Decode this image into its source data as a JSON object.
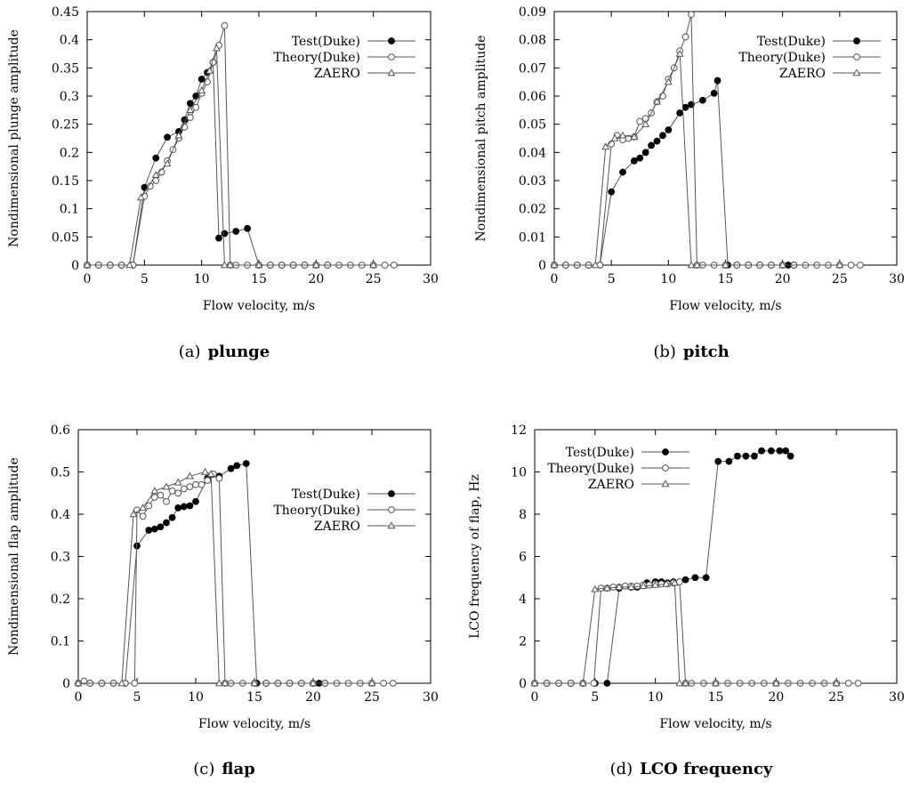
{
  "chart_data": [
    {
      "type": "line",
      "caption_prefix": "(a)",
      "caption_bold": "plunge",
      "xlabel": "Flow velocity, m/s",
      "ylabel": "Nondimensional plunge  amplitude",
      "xlim": [
        0,
        30
      ],
      "ylim": [
        0,
        0.45
      ],
      "xticks": [
        "0",
        "5",
        "10",
        "15",
        "20",
        "25",
        "30"
      ],
      "yticks": [
        "0",
        "0.05",
        "0.1",
        "0.15",
        "0.2",
        "0.25",
        "0.3",
        "0.35",
        "0.4",
        "0.45"
      ],
      "legend_position": "top-right",
      "series": [
        {
          "name": "Test(Duke)",
          "marker": "filled-circle",
          "x": [
            0,
            1,
            2,
            3,
            4,
            5,
            6,
            7,
            8,
            8.5,
            9,
            9.5,
            10,
            10.5,
            11,
            11.5,
            12,
            13,
            14,
            15,
            16,
            17,
            18,
            19,
            20,
            21
          ],
          "y": [
            0,
            0,
            0,
            0,
            0,
            0.138,
            0.19,
            0.227,
            0.237,
            0.258,
            0.287,
            0.3,
            0.33,
            0.342,
            0.36,
            0.048,
            0.056,
            0.06,
            0.065,
            0,
            0,
            0,
            0,
            0,
            0,
            0
          ]
        },
        {
          "name": "Theory(Duke)",
          "marker": "open-circle",
          "x": [
            0,
            1,
            2,
            3,
            4,
            5,
            5.5,
            6,
            6.5,
            7,
            7.5,
            8,
            8.5,
            9,
            9.5,
            10,
            10.5,
            11,
            11.5,
            12,
            12.5,
            13,
            14,
            15,
            16,
            17,
            18,
            19,
            20,
            21,
            22,
            23,
            24,
            25,
            26,
            26.8
          ],
          "y": [
            0,
            0,
            0,
            0,
            0,
            0.122,
            0.14,
            0.15,
            0.165,
            0.185,
            0.205,
            0.225,
            0.245,
            0.262,
            0.28,
            0.305,
            0.325,
            0.36,
            0.39,
            0.425,
            0,
            0,
            0,
            0,
            0,
            0,
            0,
            0,
            0,
            0,
            0,
            0,
            0,
            0,
            0,
            0
          ]
        },
        {
          "name": "ZAERO",
          "marker": "open-triangle",
          "x": [
            0,
            3.7,
            4.7,
            6,
            7,
            8,
            9,
            10,
            10.7,
            11.3,
            12,
            12.5,
            15,
            20,
            25
          ],
          "y": [
            0,
            0,
            0.12,
            0.16,
            0.18,
            0.23,
            0.275,
            0.31,
            0.345,
            0.385,
            0,
            0,
            0,
            0,
            0
          ]
        }
      ]
    },
    {
      "type": "line",
      "caption_prefix": "(b)",
      "caption_bold": "pitch",
      "xlabel": "Flow velocity, m/s",
      "ylabel": "Nondimensional pitch  amplitude",
      "xlim": [
        0,
        30
      ],
      "ylim": [
        0,
        0.09
      ],
      "xticks": [
        "0",
        "5",
        "10",
        "15",
        "20",
        "25",
        "30"
      ],
      "yticks": [
        "0",
        "0.01",
        "0.02",
        "0.03",
        "0.04",
        "0.05",
        "0.06",
        "0.07",
        "0.08",
        "0.09"
      ],
      "legend_position": "top-right",
      "series": [
        {
          "name": "Test(Duke)",
          "marker": "filled-circle",
          "x": [
            0,
            1,
            2,
            3,
            4,
            5,
            6,
            7,
            7.5,
            8,
            8.5,
            9,
            9.5,
            10,
            11,
            11.5,
            12,
            13,
            14,
            14.3,
            15.2,
            16,
            17,
            18,
            19,
            20,
            20.5,
            21
          ],
          "y": [
            0,
            0,
            0,
            0,
            0,
            0.026,
            0.033,
            0.037,
            0.038,
            0.04,
            0.0425,
            0.044,
            0.046,
            0.048,
            0.054,
            0.056,
            0.057,
            0.0585,
            0.061,
            0.0655,
            0,
            0,
            0,
            0,
            0,
            0,
            0,
            0
          ]
        },
        {
          "name": "Theory(Duke)",
          "marker": "open-circle",
          "x": [
            0,
            1,
            2,
            3,
            4,
            5,
            5.5,
            6,
            6.5,
            7,
            7.5,
            8,
            8.5,
            9,
            9.5,
            10,
            10.5,
            11,
            11.5,
            12,
            12.5,
            13,
            14,
            15,
            16,
            17,
            18,
            19,
            20,
            21,
            22,
            23,
            24,
            25,
            26,
            26.8
          ],
          "y": [
            0,
            0,
            0,
            0,
            0,
            0.043,
            0.046,
            0.0445,
            0.045,
            0.0455,
            0.051,
            0.052,
            0.054,
            0.058,
            0.06,
            0.066,
            0.07,
            0.076,
            0.081,
            0.089,
            0,
            0,
            0,
            0,
            0,
            0,
            0,
            0,
            0,
            0,
            0,
            0,
            0,
            0,
            0,
            0
          ]
        },
        {
          "name": "ZAERO",
          "marker": "open-triangle",
          "x": [
            0,
            3.6,
            4.5,
            5.3,
            6,
            7,
            8,
            9,
            10,
            11,
            12,
            12.5,
            15,
            20,
            25
          ],
          "y": [
            0,
            0,
            0.042,
            0.045,
            0.046,
            0.0455,
            0.05,
            0.058,
            0.065,
            0.075,
            0,
            0,
            0,
            0,
            0
          ]
        }
      ]
    },
    {
      "type": "line",
      "caption_prefix": "(c)",
      "caption_bold": "flap",
      "xlabel": "Flow velocity, m/s",
      "ylabel": "Nondimensional flap  amplitude",
      "xlim": [
        0,
        30
      ],
      "ylim": [
        0,
        0.6
      ],
      "xticks": [
        "0",
        "5",
        "10",
        "15",
        "20",
        "25",
        "30"
      ],
      "yticks": [
        "0",
        "0.1",
        "0.2",
        "0.3",
        "0.4",
        "0.5",
        "0.6"
      ],
      "legend_position": "center-right",
      "series": [
        {
          "name": "Test(Duke)",
          "marker": "filled-circle",
          "x": [
            0,
            1,
            2,
            3,
            4,
            5,
            6,
            6.5,
            7,
            7.5,
            8,
            8.5,
            9,
            9.5,
            10,
            11,
            12,
            13,
            13.5,
            14.3,
            15.2,
            16,
            17,
            18,
            19,
            20,
            20.5,
            21
          ],
          "y": [
            0,
            0,
            0,
            0,
            0,
            0.325,
            0.362,
            0.365,
            0.37,
            0.38,
            0.392,
            0.415,
            0.418,
            0.42,
            0.43,
            0.485,
            0.49,
            0.508,
            0.515,
            0.52,
            0,
            0,
            0,
            0,
            0,
            0,
            0,
            0
          ]
        },
        {
          "name": "Theory(Duke)",
          "marker": "open-circle",
          "x": [
            0,
            0.5,
            1,
            2,
            3,
            4,
            4.8,
            5,
            5.5,
            6,
            6.5,
            7,
            7.5,
            8,
            8.5,
            9,
            9.5,
            10,
            10.5,
            11,
            11.5,
            12,
            12.5,
            13,
            14,
            15,
            16,
            17,
            18,
            19,
            20,
            21,
            22,
            23,
            24,
            25,
            26,
            26.8
          ],
          "y": [
            0,
            0.005,
            0,
            0,
            0,
            0,
            0,
            0.41,
            0.395,
            0.42,
            0.44,
            0.445,
            0.43,
            0.455,
            0.45,
            0.46,
            0.465,
            0.47,
            0.47,
            0.48,
            0.495,
            0.485,
            0,
            0,
            0,
            0,
            0,
            0,
            0,
            0,
            0,
            0,
            0,
            0,
            0,
            0,
            0,
            0
          ]
        },
        {
          "name": "ZAERO",
          "marker": "open-triangle",
          "x": [
            0,
            3.7,
            4.7,
            5.5,
            6.5,
            7.5,
            8.5,
            9.5,
            10.8,
            11.3,
            12,
            12.5,
            15,
            20,
            25
          ],
          "y": [
            0,
            0,
            0.4,
            0.415,
            0.455,
            0.465,
            0.475,
            0.49,
            0.5,
            0.495,
            0,
            0,
            0,
            0,
            0
          ]
        }
      ]
    },
    {
      "type": "line",
      "caption_prefix": "(d)",
      "caption_bold": "LCO frequency",
      "xlabel": "Flow velocity, m/s",
      "ylabel": "LCO frequency of flap, Hz",
      "xlim": [
        0,
        30
      ],
      "ylim": [
        0,
        12
      ],
      "xticks": [
        "0",
        "5",
        "10",
        "15",
        "20",
        "25",
        "30"
      ],
      "yticks": [
        "0",
        "2",
        "4",
        "6",
        "8",
        "10",
        "12"
      ],
      "legend_position": "top-left",
      "series": [
        {
          "name": "Test(Duke)",
          "marker": "filled-circle",
          "x": [
            0,
            1,
            2,
            3,
            4,
            5,
            6,
            7,
            8,
            8.5,
            9.3,
            10,
            10.5,
            11,
            11.5,
            12.5,
            13.3,
            14.2,
            15.2,
            16.1,
            16.8,
            17.5,
            18.2,
            18.8,
            19.6,
            20.3,
            20.8,
            21.2
          ],
          "y": [
            0,
            0,
            0,
            0,
            0,
            0,
            0,
            4.5,
            4.55,
            4.55,
            4.75,
            4.8,
            4.8,
            4.75,
            4.8,
            4.9,
            5.0,
            5.0,
            10.5,
            10.5,
            10.75,
            10.75,
            10.75,
            11.0,
            11.0,
            11.0,
            11.0,
            10.75
          ]
        },
        {
          "name": "Theory(Duke)",
          "marker": "open-circle",
          "x": [
            0,
            1,
            2,
            3,
            4,
            4.9,
            5.5,
            6,
            6.5,
            7,
            7.5,
            8,
            8.5,
            9,
            9.5,
            10,
            10.5,
            11,
            11.5,
            12,
            12.5,
            13,
            14,
            15,
            16,
            17,
            18,
            19,
            20,
            21,
            22,
            23,
            24,
            25,
            26,
            26.8
          ],
          "y": [
            0,
            0,
            0,
            0,
            0,
            0,
            4.5,
            4.5,
            4.55,
            4.55,
            4.6,
            4.6,
            4.6,
            4.65,
            4.65,
            4.7,
            4.7,
            4.7,
            4.75,
            4.8,
            0,
            0,
            0,
            0,
            0,
            0,
            0,
            0,
            0,
            0,
            0,
            0,
            0,
            0,
            0,
            0
          ]
        },
        {
          "name": "ZAERO",
          "marker": "open-triangle",
          "x": [
            0,
            4,
            5,
            6,
            7,
            8,
            9,
            10,
            10.9,
            11.6,
            12,
            12.5,
            15,
            20,
            25
          ],
          "y": [
            0,
            0,
            4.45,
            4.5,
            4.55,
            4.55,
            4.6,
            4.65,
            4.7,
            4.75,
            0,
            0,
            0,
            0,
            0
          ]
        }
      ]
    }
  ]
}
